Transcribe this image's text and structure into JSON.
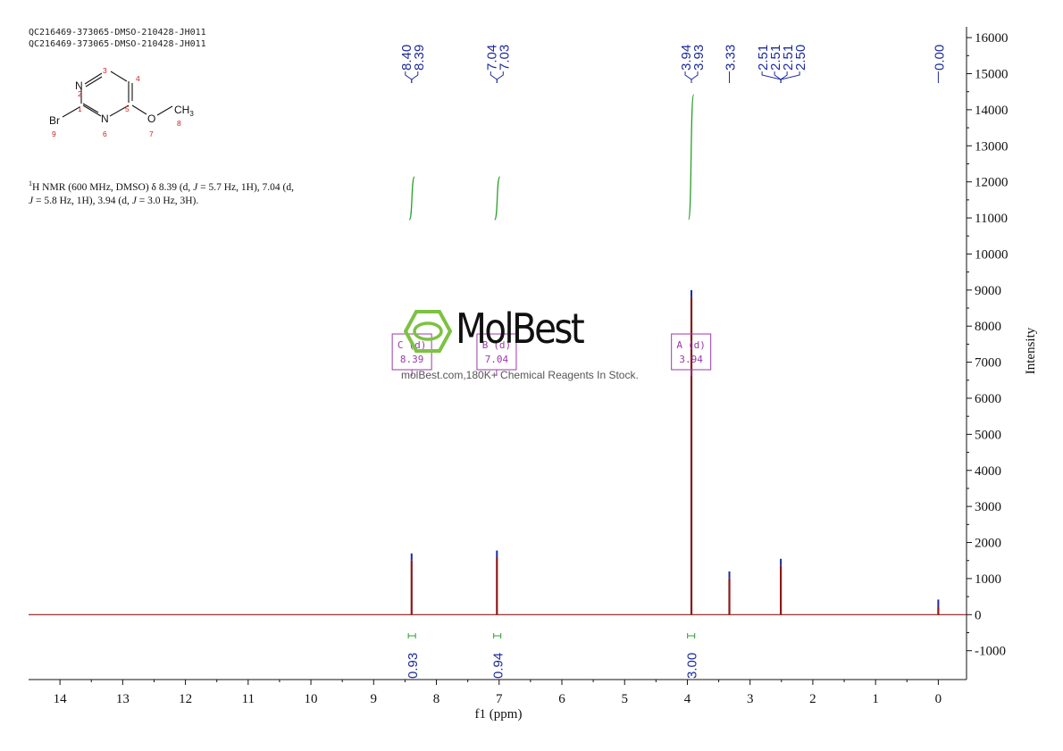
{
  "header": {
    "line1": "QC216469-373065-DMSO-210428-JH011",
    "line2": "QC216469-373065-DMSO-210428-JH011"
  },
  "structure": {
    "atoms": [
      "N",
      "Br",
      "N",
      "O",
      "CH",
      "3"
    ],
    "numbers": [
      "3",
      "4",
      "2",
      "1",
      "5",
      "8",
      "9",
      "6",
      "7"
    ]
  },
  "nmr_description": {
    "sup": "1",
    "text1": "H NMR (600 MHz, DMSO) δ 8.39 (d, ",
    "J": "J",
    "text2": " = 5.7 Hz, 1H), 7.04 (d, ",
    "text3": " = 5.8 Hz, 1H), 3.94 (d, ",
    "text4": " = 3.0 Hz, 3H)."
  },
  "watermark": {
    "title": "MolBest",
    "subtitle": "molBest.com,180K+ Chemical Reagents In Stock."
  },
  "colors": {
    "spectrum": "#8b1a1a",
    "integral": "#2aa02a",
    "peak_label": "#1c2b9c",
    "multiplet_box": "#9b3aa8",
    "axis": "#111111"
  },
  "chart_data": {
    "type": "line",
    "xlabel": "f1 (ppm)",
    "ylabel": "Intensity",
    "xlim": [
      14.5,
      -0.45
    ],
    "ylim": [
      -1800,
      16300
    ],
    "x_reversed": true,
    "x_ticks": [
      "14",
      "13",
      "12",
      "11",
      "10",
      "9",
      "8",
      "7",
      "6",
      "5",
      "4",
      "3",
      "2",
      "1",
      "0"
    ],
    "y_ticks": [
      "16000",
      "15000",
      "14000",
      "13000",
      "12000",
      "11000",
      "10000",
      "9000",
      "8000",
      "7000",
      "6000",
      "5000",
      "4000",
      "3000",
      "2000",
      "1000",
      "0",
      "-1000"
    ],
    "peaks": [
      {
        "ppm": 8.395,
        "height": 1500
      },
      {
        "ppm": 7.035,
        "height": 1580
      },
      {
        "ppm": 3.935,
        "height": 8800
      },
      {
        "ppm": 3.33,
        "height": 1000
      },
      {
        "ppm": 2.51,
        "height": 1350
      },
      {
        "ppm": 0.0,
        "height": 220
      }
    ],
    "peak_label_groups": [
      {
        "labels": [
          "8.40",
          "8.39"
        ],
        "ppm": 8.395
      },
      {
        "labels": [
          "7.04",
          "7.03"
        ],
        "ppm": 7.035
      },
      {
        "labels": [
          "3.94",
          "3.93"
        ],
        "ppm": 3.935
      },
      {
        "labels": [
          "3.33"
        ],
        "ppm": 3.33
      },
      {
        "labels": [
          "2.51",
          "2.51",
          "2.51",
          "2.50"
        ],
        "ppm": 2.51
      },
      {
        "labels": [
          "0.00"
        ],
        "ppm": 0.0
      }
    ],
    "multiplets": [
      {
        "letter": "C",
        "mult": "(d)",
        "shift": "8.39",
        "ppm": 8.39
      },
      {
        "letter": "B",
        "mult": "(d)",
        "shift": "7.04",
        "ppm": 7.04
      },
      {
        "letter": "A",
        "mult": "(d)",
        "shift": "3.94",
        "ppm": 3.94
      }
    ],
    "integrals": [
      {
        "value": "0.93",
        "ppm": 8.39
      },
      {
        "value": "0.94",
        "ppm": 7.03
      },
      {
        "value": "3.00",
        "ppm": 3.94
      }
    ]
  }
}
